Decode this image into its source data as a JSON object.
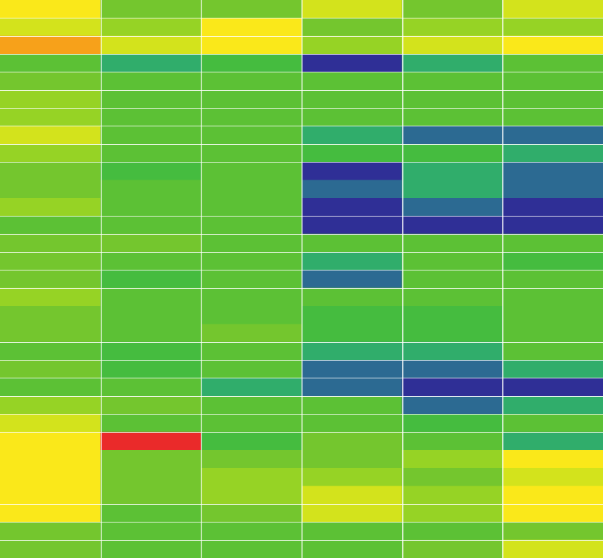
{
  "chart_data": {
    "type": "heatmap",
    "title": "",
    "xlabel": "",
    "ylabel": "",
    "rows": 31,
    "cols": 6,
    "color_scale": [
      "#2f2f96",
      "#2c6a92",
      "#30ad6b",
      "#45bc3f",
      "#5cc135",
      "#74c62e",
      "#96d325",
      "#d3e31c",
      "#fae81a",
      "#f7a11a",
      "#ea2a2a"
    ],
    "values": [
      [
        8,
        5,
        5,
        7,
        5,
        7
      ],
      [
        7,
        6,
        8,
        5,
        6,
        6
      ],
      [
        9,
        7,
        8,
        6,
        7,
        8
      ],
      [
        4,
        2,
        3,
        0,
        2,
        4
      ],
      [
        5,
        4,
        4,
        4,
        4,
        4
      ],
      [
        6,
        4,
        4,
        4,
        4,
        4
      ],
      [
        6,
        4,
        4,
        4,
        4,
        4
      ],
      [
        7,
        4,
        4,
        2,
        1,
        1
      ],
      [
        6,
        4,
        4,
        3,
        3,
        2
      ],
      [
        5,
        3,
        4,
        0,
        2,
        1
      ],
      [
        5,
        4,
        4,
        1,
        2,
        1
      ],
      [
        6,
        4,
        4,
        0,
        1,
        0
      ],
      [
        4,
        4,
        4,
        0,
        0,
        0
      ],
      [
        5,
        5,
        4,
        4,
        4,
        4
      ],
      [
        5,
        4,
        4,
        2,
        4,
        3
      ],
      [
        5,
        3,
        4,
        1,
        4,
        4
      ],
      [
        6,
        4,
        4,
        4,
        4,
        4
      ],
      [
        5,
        4,
        4,
        3,
        3,
        4
      ],
      [
        5,
        4,
        5,
        3,
        3,
        4
      ],
      [
        4,
        3,
        4,
        2,
        2,
        4
      ],
      [
        5,
        3,
        4,
        1,
        1,
        2
      ],
      [
        4,
        4,
        2,
        1,
        0,
        0
      ],
      [
        6,
        5,
        4,
        4,
        1,
        2
      ],
      [
        7,
        4,
        4,
        4,
        3,
        4
      ],
      [
        8,
        10,
        3,
        5,
        4,
        2
      ],
      [
        8,
        5,
        5,
        5,
        6,
        8
      ],
      [
        8,
        5,
        6,
        6,
        5,
        7
      ],
      [
        8,
        5,
        6,
        7,
        6,
        8
      ],
      [
        8,
        4,
        5,
        7,
        6,
        8
      ],
      [
        5,
        4,
        4,
        4,
        4,
        5
      ],
      [
        5,
        4,
        4,
        4,
        5,
        7
      ]
    ],
    "row_group_breaks": [
      1,
      2,
      3,
      4,
      5,
      6,
      7,
      8,
      9,
      12,
      13,
      14,
      15,
      16,
      19,
      20,
      21,
      22,
      23,
      24,
      28,
      29,
      30
    ],
    "grid": true,
    "legend": "none"
  }
}
